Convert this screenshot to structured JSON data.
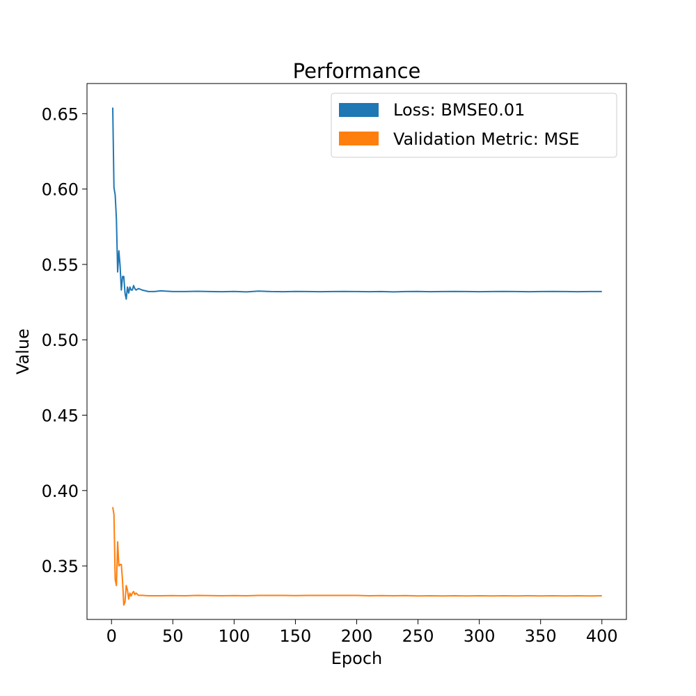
{
  "chart_data": {
    "type": "line",
    "title": "Performance",
    "xlabel": "Epoch",
    "ylabel": "Value",
    "xlim": [
      -20,
      420
    ],
    "ylim": [
      0.3145,
      0.67
    ],
    "xticks": [
      0,
      50,
      100,
      150,
      200,
      250,
      300,
      350,
      400
    ],
    "yticks": [
      0.35,
      0.4,
      0.45,
      0.5,
      0.55,
      0.6,
      0.65
    ],
    "xtick_labels": [
      "0",
      "50",
      "100",
      "150",
      "200",
      "250",
      "300",
      "350",
      "400"
    ],
    "ytick_labels": [
      "0.35",
      "0.40",
      "0.45",
      "0.50",
      "0.55",
      "0.60",
      "0.65"
    ],
    "grid": false,
    "legend_position": "top-right",
    "series": [
      {
        "name": "Loss: BMSE0.01",
        "color": "#1f77b4",
        "points": [
          [
            1,
            0.654
          ],
          [
            2,
            0.601
          ],
          [
            3,
            0.596
          ],
          [
            4,
            0.58
          ],
          [
            5,
            0.545
          ],
          [
            6,
            0.559
          ],
          [
            7,
            0.549
          ],
          [
            8,
            0.533
          ],
          [
            9,
            0.542
          ],
          [
            10,
            0.542
          ],
          [
            11,
            0.531
          ],
          [
            12,
            0.527
          ],
          [
            13,
            0.535
          ],
          [
            14,
            0.531
          ],
          [
            15,
            0.535
          ],
          [
            16,
            0.533
          ],
          [
            17,
            0.533
          ],
          [
            18,
            0.536
          ],
          [
            19,
            0.534
          ],
          [
            20,
            0.533
          ],
          [
            22,
            0.534
          ],
          [
            25,
            0.533
          ],
          [
            30,
            0.532
          ],
          [
            35,
            0.532
          ],
          [
            40,
            0.5325
          ],
          [
            50,
            0.532
          ],
          [
            60,
            0.532
          ],
          [
            70,
            0.5322
          ],
          [
            80,
            0.532
          ],
          [
            90,
            0.5319
          ],
          [
            100,
            0.5321
          ],
          [
            110,
            0.5318
          ],
          [
            120,
            0.5323
          ],
          [
            130,
            0.532
          ],
          [
            140,
            0.5319
          ],
          [
            150,
            0.5321
          ],
          [
            160,
            0.532
          ],
          [
            170,
            0.5319
          ],
          [
            180,
            0.532
          ],
          [
            190,
            0.5321
          ],
          [
            200,
            0.532
          ],
          [
            210,
            0.5319
          ],
          [
            220,
            0.532
          ],
          [
            230,
            0.5318
          ],
          [
            240,
            0.532
          ],
          [
            250,
            0.5321
          ],
          [
            260,
            0.5319
          ],
          [
            270,
            0.532
          ],
          [
            280,
            0.5321
          ],
          [
            290,
            0.532
          ],
          [
            300,
            0.5319
          ],
          [
            310,
            0.532
          ],
          [
            320,
            0.5321
          ],
          [
            330,
            0.532
          ],
          [
            340,
            0.5319
          ],
          [
            350,
            0.532
          ],
          [
            360,
            0.5321
          ],
          [
            370,
            0.532
          ],
          [
            380,
            0.5319
          ],
          [
            390,
            0.532
          ],
          [
            400,
            0.532
          ]
        ]
      },
      {
        "name": "Validation Metric: MSE",
        "color": "#ff7f0e",
        "points": [
          [
            1,
            0.389
          ],
          [
            2,
            0.384
          ],
          [
            3,
            0.341
          ],
          [
            4,
            0.337
          ],
          [
            5,
            0.366
          ],
          [
            6,
            0.35
          ],
          [
            7,
            0.351
          ],
          [
            8,
            0.351
          ],
          [
            9,
            0.34
          ],
          [
            10,
            0.324
          ],
          [
            11,
            0.326
          ],
          [
            12,
            0.337
          ],
          [
            13,
            0.334
          ],
          [
            14,
            0.328
          ],
          [
            15,
            0.332
          ],
          [
            16,
            0.33
          ],
          [
            17,
            0.332
          ],
          [
            18,
            0.333
          ],
          [
            19,
            0.331
          ],
          [
            20,
            0.332
          ],
          [
            22,
            0.3305
          ],
          [
            25,
            0.3305
          ],
          [
            30,
            0.3302
          ],
          [
            40,
            0.3302
          ],
          [
            50,
            0.3303
          ],
          [
            60,
            0.3302
          ],
          [
            70,
            0.3304
          ],
          [
            80,
            0.3303
          ],
          [
            90,
            0.3302
          ],
          [
            100,
            0.3303
          ],
          [
            110,
            0.3302
          ],
          [
            120,
            0.3304
          ],
          [
            130,
            0.3304
          ],
          [
            140,
            0.3304
          ],
          [
            150,
            0.3303
          ],
          [
            160,
            0.3304
          ],
          [
            170,
            0.3304
          ],
          [
            180,
            0.3304
          ],
          [
            190,
            0.3304
          ],
          [
            200,
            0.3304
          ],
          [
            210,
            0.3302
          ],
          [
            220,
            0.3303
          ],
          [
            230,
            0.3302
          ],
          [
            240,
            0.3303
          ],
          [
            250,
            0.3301
          ],
          [
            260,
            0.3302
          ],
          [
            270,
            0.3301
          ],
          [
            280,
            0.3302
          ],
          [
            290,
            0.3301
          ],
          [
            300,
            0.3302
          ],
          [
            310,
            0.3301
          ],
          [
            320,
            0.3302
          ],
          [
            330,
            0.3301
          ],
          [
            340,
            0.3302
          ],
          [
            350,
            0.3301
          ],
          [
            360,
            0.3302
          ],
          [
            370,
            0.3301
          ],
          [
            380,
            0.3302
          ],
          [
            390,
            0.3301
          ],
          [
            400,
            0.3302
          ]
        ]
      }
    ]
  }
}
